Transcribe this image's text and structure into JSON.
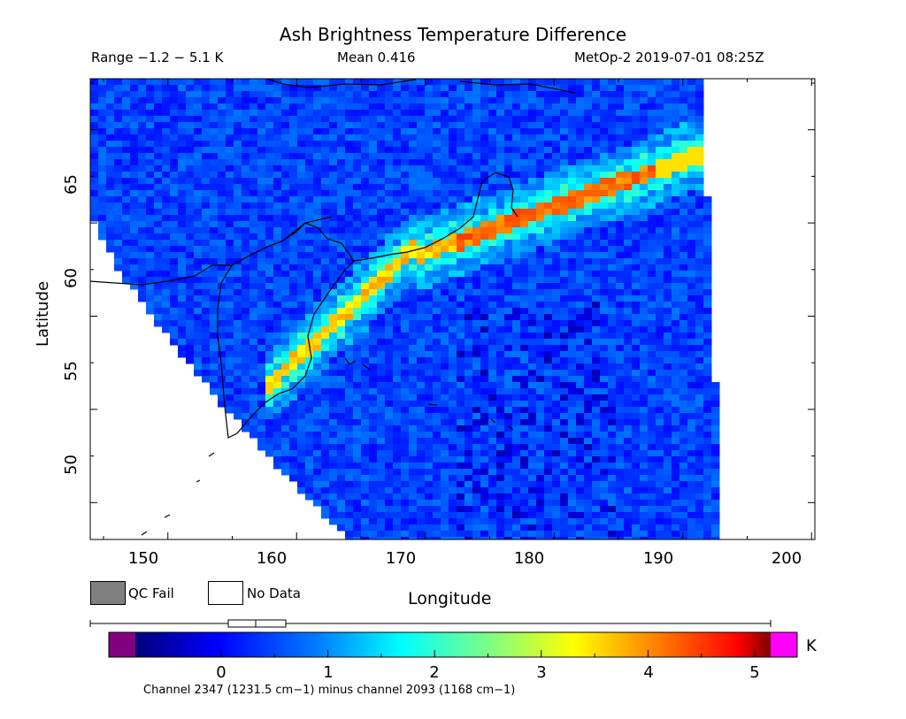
{
  "header": {
    "title": "Ash Brightness Temperature Difference",
    "range": "Range −1.2 − 5.1 K",
    "mean": "Mean 0.416",
    "source": "MetOp-2 2019-07-01 08:25Z"
  },
  "axes": {
    "xlabel": "Longitude",
    "ylabel": "Latitude",
    "xticks": [
      "150",
      "160",
      "170",
      "180",
      "190",
      "200"
    ],
    "yticks": [
      "50",
      "55",
      "60",
      "65"
    ],
    "xlim": [
      146,
      202
    ],
    "ylim": [
      45.5,
      70.5
    ]
  },
  "legend": {
    "qc_fail": "QC Fail",
    "no_data": "No Data",
    "qc_fail_color": "#808080",
    "no_data_color": "#ffffff"
  },
  "colorbar": {
    "unit": "K",
    "ticks": [
      "0",
      "1",
      "2",
      "3",
      "4",
      "5"
    ],
    "range": [
      -1,
      5.2
    ],
    "underflow_color": "#800080",
    "overflow_color": "#ff00ff",
    "caption": "Channel 2347 (1231.5 cm−1) minus channel 2093 (1168 cm−1)"
  },
  "map": {
    "background_color": "#ffffff",
    "coastline_color": "#000000"
  }
}
